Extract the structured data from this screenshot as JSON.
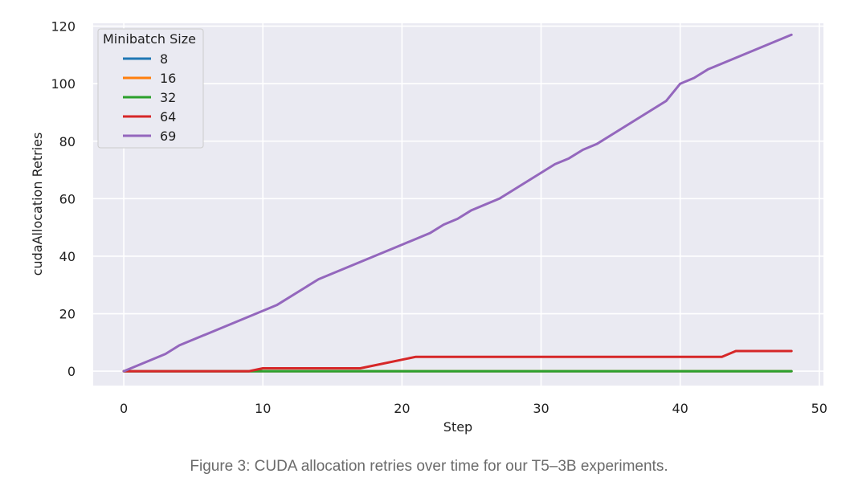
{
  "chart_data": {
    "type": "line",
    "xlabel": "Step",
    "ylabel": "cudaAllocation Retries",
    "xlim": [
      -2.2,
      50.3
    ],
    "ylim": [
      -5,
      121
    ],
    "xticks": [
      0,
      10,
      20,
      30,
      40,
      50
    ],
    "yticks": [
      0,
      20,
      40,
      60,
      80,
      100,
      120
    ],
    "grid": true,
    "legend": {
      "title": "Minibatch Size",
      "placement": "top-left"
    },
    "series": [
      {
        "name": "8",
        "color": "#1f77b4",
        "x": [
          0,
          48
        ],
        "y": [
          0,
          0
        ]
      },
      {
        "name": "16",
        "color": "#ff7f0e",
        "x": [
          0,
          48
        ],
        "y": [
          0,
          0
        ]
      },
      {
        "name": "32",
        "color": "#2ca02c",
        "x": [
          0,
          48
        ],
        "y": [
          0,
          0
        ]
      },
      {
        "name": "64",
        "color": "#d62728",
        "x": [
          0,
          9,
          10,
          17,
          21,
          43,
          44,
          48
        ],
        "y": [
          0,
          0,
          1,
          1,
          5,
          5,
          7,
          7
        ]
      },
      {
        "name": "69",
        "color": "#9467bd",
        "x": [
          0,
          3,
          4,
          11,
          14,
          20,
          22,
          23,
          24,
          25,
          27,
          31,
          32,
          33,
          34,
          39,
          40,
          41,
          42,
          48
        ],
        "y": [
          0,
          6,
          9,
          23,
          32,
          44,
          48,
          51,
          53,
          56,
          60,
          72,
          74,
          77,
          79,
          94,
          100,
          102,
          105,
          117
        ]
      }
    ]
  },
  "caption": "Figure 3: CUDA allocation retries over time for our T5–3B experiments."
}
